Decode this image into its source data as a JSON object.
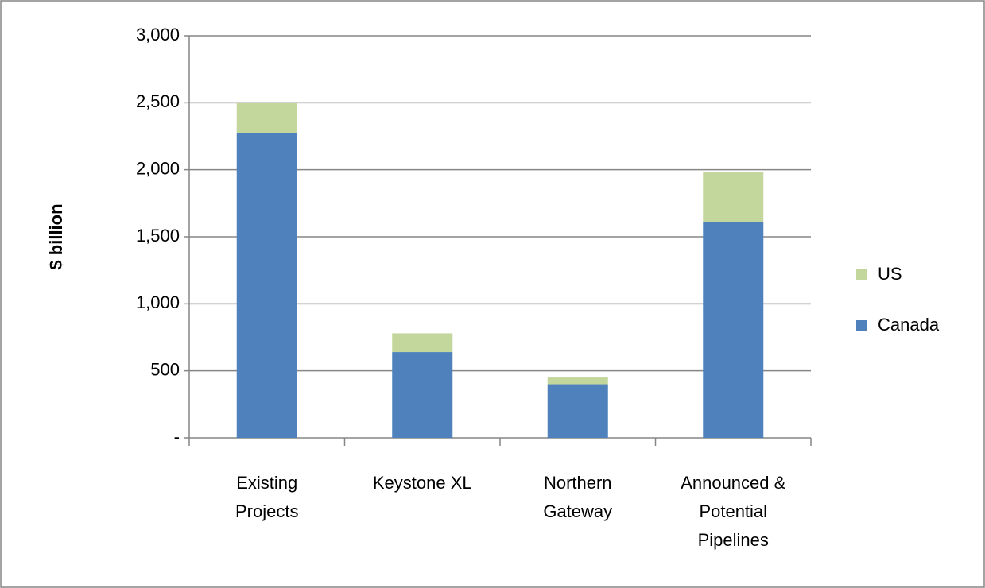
{
  "chart_data": {
    "type": "stacked-bar",
    "y_label": "$ billion",
    "categories": [
      "Existing\nProjects",
      "Keystone XL",
      "Northern\nGateway",
      "Announced &\nPotential\nPipelines"
    ],
    "series": [
      {
        "name": "Canada",
        "color": "#4f81bd",
        "values": [
          2275,
          640,
          400,
          1610
        ]
      },
      {
        "name": "US",
        "color": "#c3d69b",
        "values": [
          225,
          140,
          50,
          370
        ]
      }
    ],
    "ylim": [
      0,
      3000
    ],
    "yticks": [
      {
        "value": 0,
        "label": "-"
      },
      500,
      {
        "value": 1000,
        "label": "1,000"
      },
      {
        "value": 1500,
        "label": "1,500"
      },
      {
        "value": 2000,
        "label": "2,000"
      },
      {
        "value": 2500,
        "label": "2,500"
      },
      {
        "value": 3000,
        "label": "3,000"
      }
    ],
    "grid": true,
    "legend": "right"
  }
}
